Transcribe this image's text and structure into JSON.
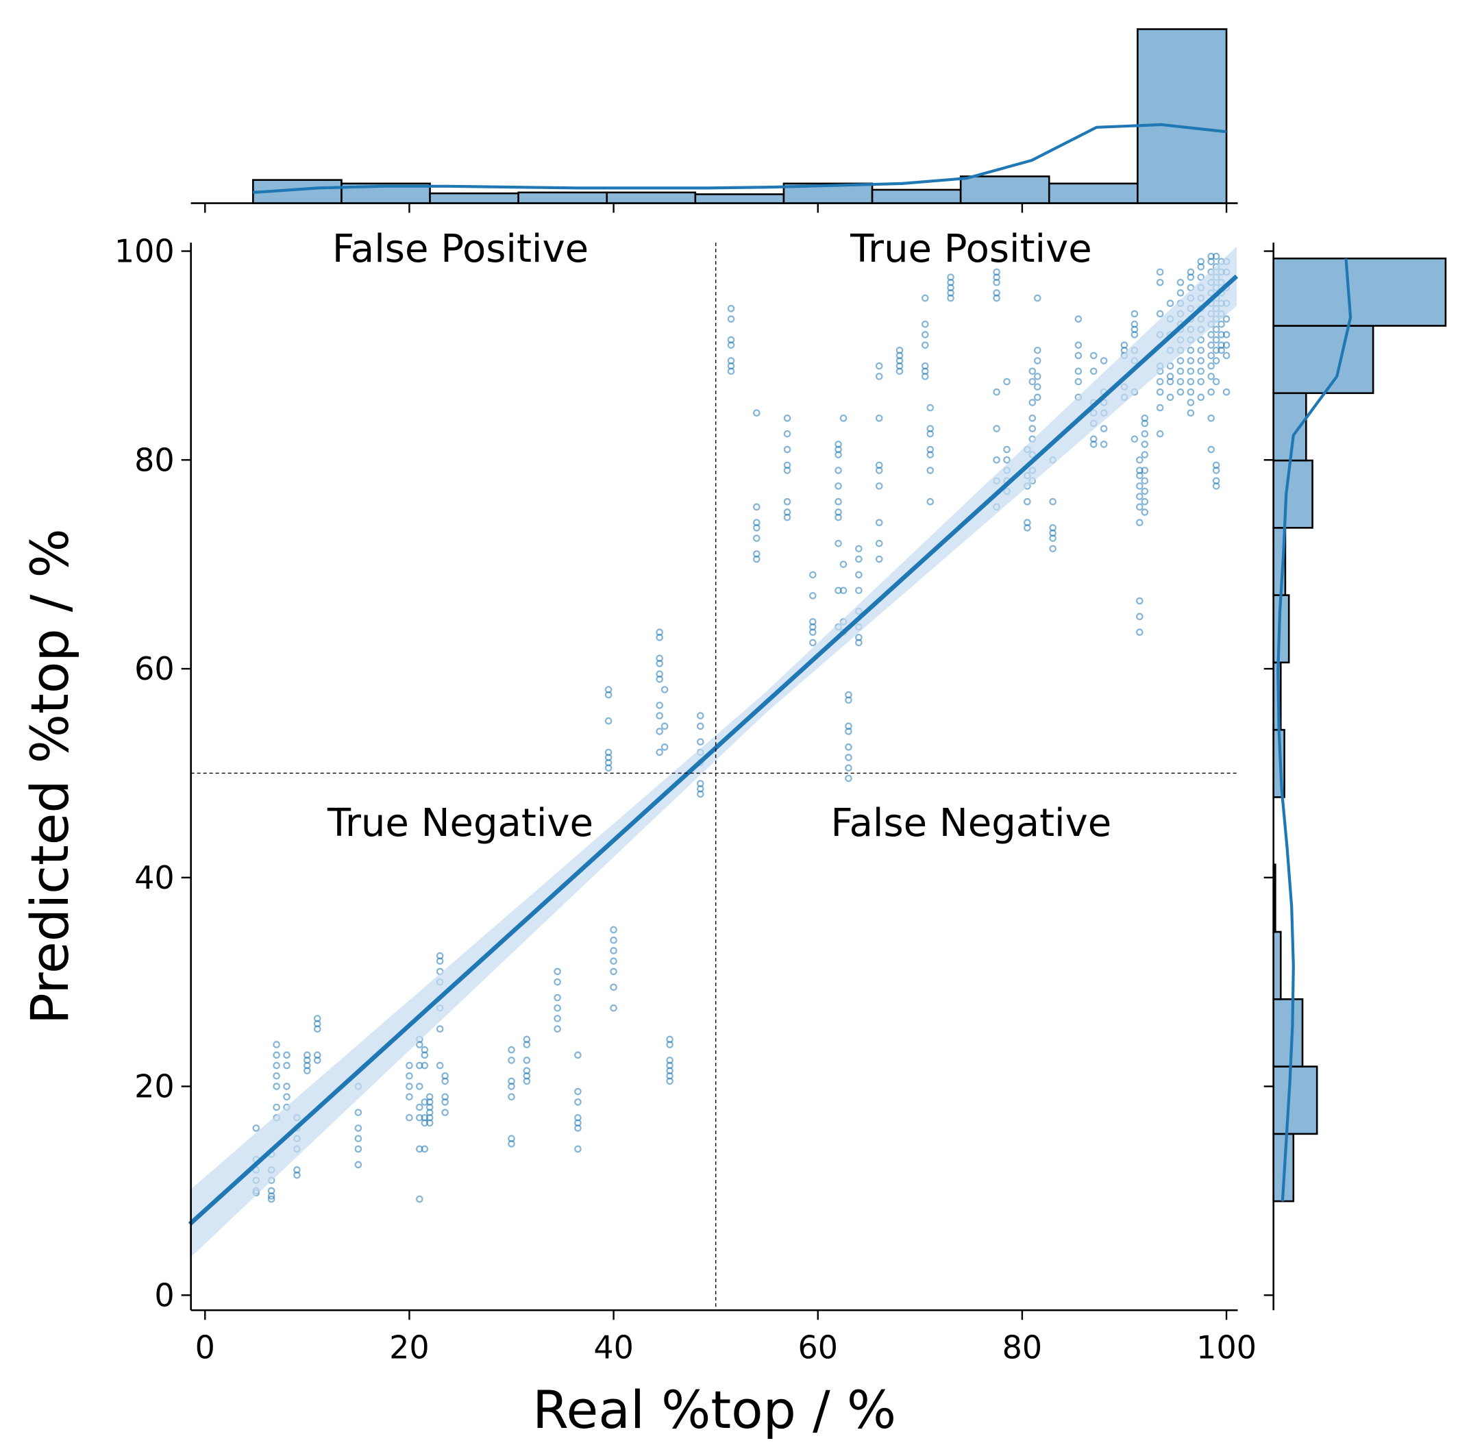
{
  "chart_data": {
    "type": "scatter",
    "xlabel": "Real %top / %",
    "ylabel": "Predicted %top / %",
    "xlim": [
      -1.5,
      101
    ],
    "ylim": [
      -1.5,
      101
    ],
    "xticks": [
      0,
      20,
      40,
      60,
      80,
      100
    ],
    "yticks": [
      0,
      20,
      40,
      60,
      80,
      100
    ],
    "threshold": {
      "x": 50,
      "y": 50
    },
    "quadrant_labels": {
      "false_positive": "False Positive",
      "true_positive": "True Positive",
      "true_negative": "True Negative",
      "false_negative": "False Negative"
    },
    "regression_line": {
      "x": [
        -1.5,
        101
      ],
      "y": [
        6.8,
        97.6
      ]
    },
    "colors": {
      "points": "#1f77b4",
      "bars": "#8bb8d9",
      "line": "#1f77b4",
      "band": "#c6dbef"
    },
    "scatter_columns": [
      {
        "x": 5,
        "y": [
          16,
          13,
          12,
          11,
          10,
          9.8
        ]
      },
      {
        "x": 6.5,
        "y": [
          13.5,
          12,
          11,
          10,
          9.5,
          9.2
        ]
      },
      {
        "x": 7,
        "y": [
          24,
          23,
          22,
          21,
          20,
          18,
          17
        ]
      },
      {
        "x": 8,
        "y": [
          23,
          22,
          20,
          19,
          18
        ]
      },
      {
        "x": 9,
        "y": [
          17,
          16,
          15,
          14,
          12,
          11.5
        ]
      },
      {
        "x": 10,
        "y": [
          23,
          22.5,
          22,
          21.5
        ]
      },
      {
        "x": 11,
        "y": [
          26.5,
          26,
          25.5,
          23,
          22.5
        ]
      },
      {
        "x": 15,
        "y": [
          20,
          17.5,
          16,
          15,
          14,
          12.5
        ]
      },
      {
        "x": 20,
        "y": [
          22,
          21,
          20,
          19,
          17
        ]
      },
      {
        "x": 21,
        "y": [
          24.5,
          24,
          22,
          20,
          18,
          17,
          14,
          9.2
        ]
      },
      {
        "x": 21.5,
        "y": [
          23.5,
          23,
          22,
          18.5,
          17,
          16.5,
          14
        ]
      },
      {
        "x": 22,
        "y": [
          19,
          18.5,
          18,
          17.5,
          17,
          16.5
        ]
      },
      {
        "x": 23,
        "y": [
          32.5,
          32,
          31,
          30,
          27.5,
          25.5,
          22
        ]
      },
      {
        "x": 23.5,
        "y": [
          21,
          20.5,
          19,
          18.5,
          17.5
        ]
      },
      {
        "x": 30,
        "y": [
          23.5,
          22.5,
          20.5,
          20,
          19,
          15,
          14.5
        ]
      },
      {
        "x": 31.5,
        "y": [
          24.5,
          24,
          22.5,
          21.5,
          21,
          20.5
        ]
      },
      {
        "x": 34.5,
        "y": [
          31,
          30,
          28.5,
          27.5,
          26.5,
          25.5
        ]
      },
      {
        "x": 36.5,
        "y": [
          23,
          19.5,
          18.5,
          17,
          16.5,
          16,
          14
        ]
      },
      {
        "x": 39.5,
        "y": [
          58,
          57.5,
          55,
          52,
          51.5,
          51,
          50.5
        ]
      },
      {
        "x": 40,
        "y": [
          35,
          34,
          33,
          32,
          31,
          29.5,
          27.5
        ]
      },
      {
        "x": 44.5,
        "y": [
          63.5,
          63,
          61,
          60.5,
          59.5,
          59,
          56.5,
          55.5,
          54,
          52
        ]
      },
      {
        "x": 45,
        "y": [
          58,
          54.5,
          52.5
        ]
      },
      {
        "x": 45.5,
        "y": [
          24.5,
          24,
          22.5,
          22,
          21.5,
          21,
          20.5
        ]
      },
      {
        "x": 48.5,
        "y": [
          55.5,
          54.5,
          53,
          52,
          51,
          49,
          48.5,
          48
        ]
      },
      {
        "x": 51.5,
        "y": [
          94.5,
          93.5,
          91.5,
          91,
          89.5,
          89,
          88.5
        ]
      },
      {
        "x": 54,
        "y": [
          84.5,
          75.5,
          74,
          73.5,
          72.5,
          71,
          70.5
        ]
      },
      {
        "x": 57,
        "y": [
          84,
          82.5,
          81,
          79.5,
          79,
          76,
          75,
          74.5
        ]
      },
      {
        "x": 59.5,
        "y": [
          69,
          67,
          64.5,
          64,
          63.5,
          62.5
        ]
      },
      {
        "x": 62,
        "y": [
          81.5,
          81,
          80.5,
          79,
          77.5,
          76,
          75,
          74.5,
          72,
          67.5,
          64
        ]
      },
      {
        "x": 62.5,
        "y": [
          84,
          70,
          67.5,
          64.5,
          63.5
        ]
      },
      {
        "x": 63,
        "y": [
          57.5,
          57,
          54.5,
          54,
          52.5,
          51.5,
          50.5,
          49.5
        ]
      },
      {
        "x": 64,
        "y": [
          71.5,
          70.5,
          69,
          67.5,
          65.5,
          64,
          63,
          62.5
        ]
      },
      {
        "x": 66,
        "y": [
          89,
          88,
          84,
          79.5,
          79,
          77.5,
          74,
          72,
          70.5
        ]
      },
      {
        "x": 68,
        "y": [
          90.5,
          90,
          89.5,
          89,
          88.5
        ]
      },
      {
        "x": 70.5,
        "y": [
          95.5,
          93,
          92,
          91,
          89,
          88.5,
          88
        ]
      },
      {
        "x": 71,
        "y": [
          85,
          83,
          82.5,
          81,
          80.5,
          79,
          76
        ]
      },
      {
        "x": 73,
        "y": [
          97.5,
          97,
          96.5,
          96,
          95.5
        ]
      },
      {
        "x": 77.5,
        "y": [
          98,
          97.5,
          97,
          96,
          95.5,
          86.5,
          83,
          80,
          78,
          75.5
        ]
      },
      {
        "x": 78.5,
        "y": [
          87.5,
          81,
          80,
          79,
          78,
          77
        ]
      },
      {
        "x": 80.5,
        "y": [
          81,
          78.5,
          77.5,
          76,
          74,
          73.5
        ]
      },
      {
        "x": 81,
        "y": [
          88.5,
          87.5,
          85.5,
          84,
          83,
          82,
          80.5,
          79,
          78
        ]
      },
      {
        "x": 81.5,
        "y": [
          95.5,
          90.5,
          89.5,
          88,
          87,
          86
        ]
      },
      {
        "x": 83,
        "y": [
          80,
          76,
          73.5,
          73,
          72.5,
          71.5
        ]
      },
      {
        "x": 85.5,
        "y": [
          93.5,
          91,
          90,
          88.5,
          87.5,
          86
        ]
      },
      {
        "x": 87,
        "y": [
          90,
          88.5,
          85.5,
          84.5,
          83.5,
          82,
          81.5
        ]
      },
      {
        "x": 88,
        "y": [
          89.5,
          86.5,
          85.5,
          84.5,
          83,
          81.5
        ]
      },
      {
        "x": 90,
        "y": [
          91,
          90.5,
          90,
          87,
          86
        ]
      },
      {
        "x": 91,
        "y": [
          94,
          93,
          92.5,
          92,
          90.5,
          89.5,
          86.5,
          82
        ]
      },
      {
        "x": 91.5,
        "y": [
          80,
          79,
          78.5,
          77.5,
          76.5,
          75.5,
          74,
          66.5,
          65,
          63.5
        ]
      },
      {
        "x": 92,
        "y": [
          84,
          83.5,
          82.5,
          81.5,
          80.5,
          79,
          78,
          77,
          76,
          75
        ]
      },
      {
        "x": 93.5,
        "y": [
          98,
          97,
          94,
          92,
          89,
          88.5,
          87.5,
          86.5,
          85,
          82.5
        ]
      },
      {
        "x": 94.5,
        "y": [
          95,
          93.5,
          92,
          90.5,
          89,
          88,
          87.5,
          86
        ]
      },
      {
        "x": 95.5,
        "y": [
          97,
          96,
          95,
          94,
          93,
          92.5,
          91.5,
          90.5,
          89.5,
          88.5,
          87.5,
          86.5
        ]
      },
      {
        "x": 96.5,
        "y": [
          98,
          97.5,
          96.5,
          95.5,
          94.5,
          93.5,
          92.5,
          91.5,
          90.5,
          89.5,
          88.5,
          87.5,
          86.5,
          85.5,
          84.5
        ]
      },
      {
        "x": 97.5,
        "y": [
          99,
          98.5,
          97.5,
          96.5,
          95.5,
          94.5,
          93.5,
          92.5,
          91.5,
          90.5,
          89.5,
          88.5,
          87.5,
          86
        ]
      },
      {
        "x": 98.5,
        "y": [
          99.5,
          99,
          98,
          97,
          96,
          95,
          94,
          93,
          92,
          91,
          90,
          89,
          88,
          86.5,
          84,
          81
        ]
      },
      {
        "x": 99,
        "y": [
          99.5,
          98.5,
          97.5,
          96.5,
          95.5,
          94.5,
          93.5,
          92.5,
          91.5,
          90.5,
          89.5,
          87.5,
          79.5,
          79,
          78,
          77.5
        ]
      },
      {
        "x": 99.5,
        "y": [
          99,
          98,
          97,
          96,
          95,
          94,
          93,
          92,
          91,
          90.5
        ]
      },
      {
        "x": 100,
        "y": [
          99,
          98,
          96.5,
          95,
          93.5,
          92,
          91,
          90,
          86.5
        ]
      }
    ],
    "top_histogram": {
      "bin_edges": [
        4.7,
        13.36,
        22.02,
        30.68,
        39.34,
        48.0,
        56.66,
        65.32,
        73.98,
        82.64,
        91.3,
        100
      ],
      "counts": [
        26,
        22,
        11,
        12,
        12,
        10,
        22,
        15,
        30,
        22,
        195
      ],
      "kde_y": [
        12,
        17,
        19,
        19,
        18,
        17,
        17,
        17,
        18,
        20,
        22,
        28,
        48,
        85,
        88,
        80
      ]
    },
    "right_histogram": {
      "bin_edges": [
        9,
        15.45,
        21.9,
        28.35,
        34.8,
        41.25,
        47.7,
        54.15,
        60.6,
        67.05,
        73.5,
        79.95,
        86.4,
        92.85,
        99.3
      ],
      "counts": [
        22,
        48,
        32,
        8,
        2,
        0,
        12,
        8,
        17,
        13,
        43,
        36,
        110,
        190
      ],
      "kde_x": [
        10,
        14,
        18,
        21,
        22,
        20,
        15,
        9,
        6,
        5,
        7,
        11,
        14,
        22,
        70,
        85,
        80
      ]
    }
  }
}
